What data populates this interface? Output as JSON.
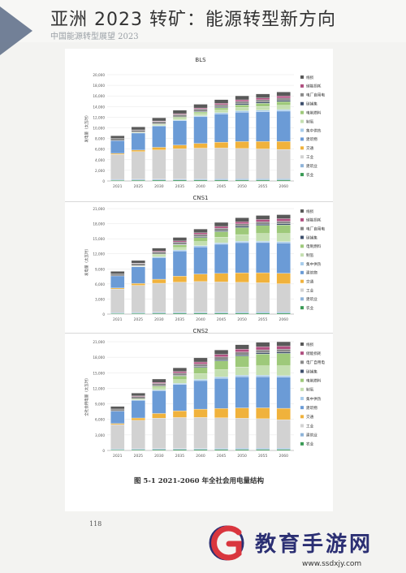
{
  "page": {
    "heading": "亚洲 2023 转矿：能源转型新方向",
    "running_head": "中国能源转型展望 2023",
    "caption": "图 5-1  2021-2060 年全社会用电量结构",
    "page_number": "118"
  },
  "watermark": {
    "name": "教育手游网",
    "url": "www.ssdxjy.com",
    "logo_letter": "G",
    "logo_color": "#d9363e",
    "text_color": "#2b2f73"
  },
  "colors": {
    "农业": "#3a9a55",
    "建筑业": "#8fb4d9",
    "工业": "#d2d2d2",
    "交通": "#f0b23c",
    "建筑物": "#6b9bd6",
    "集中供热": "#a9cdeb",
    "制氢": "#c4dfb0",
    "电制燃料": "#9ec97a",
    "碳捕集": "#3d4f6c",
    "电厂自用电": "#8a8a8a",
    "储能损耗": "#b05080",
    "线损": "#595959"
  },
  "chart_data": [
    {
      "type": "bar",
      "stacked": true,
      "title": "BLS",
      "ylabel": "发电量（太瓦时）",
      "ylim": [
        0,
        20000
      ],
      "yticks": [
        "0",
        "2,000",
        "4,000",
        "6,000",
        "8,000",
        "10,000",
        "12,000",
        "14,000",
        "16,000",
        "18,000",
        "20,000"
      ],
      "categories": [
        "2021",
        "2025",
        "2030",
        "2035",
        "2040",
        "2045",
        "2050",
        "2055",
        "2060"
      ],
      "legend": [
        "线损",
        "储能损耗",
        "电厂自用电",
        "碳捕集",
        "电制燃料",
        "制氢",
        "集中供热",
        "建筑物",
        "交通",
        "工业",
        "建筑业",
        "农业"
      ],
      "series": [
        {
          "name": "农业",
          "values": [
            150,
            160,
            170,
            180,
            190,
            200,
            210,
            215,
            220
          ]
        },
        {
          "name": "建筑业",
          "values": [
            150,
            160,
            170,
            180,
            190,
            200,
            210,
            215,
            220
          ]
        },
        {
          "name": "工业",
          "values": [
            4700,
            5200,
            5500,
            5700,
            5800,
            5800,
            5700,
            5600,
            5500
          ]
        },
        {
          "name": "交通",
          "values": [
            200,
            300,
            500,
            700,
            900,
            1100,
            1300,
            1400,
            1500
          ]
        },
        {
          "name": "建筑物",
          "values": [
            2400,
            3200,
            4000,
            4600,
            5000,
            5300,
            5500,
            5600,
            5700
          ]
        },
        {
          "name": "集中供热",
          "values": [
            0,
            50,
            100,
            150,
            200,
            250,
            300,
            300,
            300
          ]
        },
        {
          "name": "制氢",
          "values": [
            0,
            100,
            200,
            300,
            400,
            500,
            600,
            700,
            800
          ]
        },
        {
          "name": "电制燃料",
          "values": [
            0,
            0,
            100,
            200,
            300,
            400,
            500,
            600,
            700
          ]
        },
        {
          "name": "碳捕集",
          "values": [
            0,
            0,
            0,
            50,
            100,
            150,
            200,
            200,
            200
          ]
        },
        {
          "name": "电厂自用电",
          "values": [
            400,
            400,
            450,
            450,
            450,
            450,
            450,
            450,
            450
          ]
        },
        {
          "name": "储能损耗",
          "values": [
            0,
            50,
            100,
            150,
            200,
            250,
            300,
            350,
            400
          ]
        },
        {
          "name": "线损",
          "values": [
            500,
            550,
            600,
            650,
            700,
            700,
            750,
            750,
            750
          ]
        }
      ]
    },
    {
      "type": "bar",
      "stacked": true,
      "title": "CNS1",
      "ylabel": "发电量（太瓦时）",
      "ylim": [
        0,
        21000
      ],
      "yticks": [
        "0",
        "3,000",
        "6,000",
        "9,000",
        "12,000",
        "15,000",
        "18,000",
        "21,000"
      ],
      "categories": [
        "2021",
        "2025",
        "2030",
        "2035",
        "2040",
        "2045",
        "2050",
        "2055",
        "2060"
      ],
      "legend": [
        "线损",
        "储能损耗",
        "电厂自用电",
        "碳捕集",
        "电制燃料",
        "制氢",
        "集中供热",
        "建筑物",
        "交通",
        "工业",
        "建筑业",
        "农业"
      ],
      "series": [
        {
          "name": "农业",
          "values": [
            150,
            160,
            170,
            180,
            190,
            200,
            210,
            215,
            220
          ]
        },
        {
          "name": "建筑业",
          "values": [
            150,
            160,
            170,
            180,
            190,
            200,
            210,
            215,
            220
          ]
        },
        {
          "name": "工业",
          "values": [
            4700,
            5400,
            5800,
            6000,
            6100,
            6000,
            5900,
            5800,
            5600
          ]
        },
        {
          "name": "交通",
          "values": [
            200,
            400,
            800,
            1200,
            1500,
            1700,
            1900,
            2000,
            2100
          ]
        },
        {
          "name": "建筑物",
          "values": [
            2400,
            3300,
            4300,
            5000,
            5400,
            5800,
            6000,
            6000,
            6000
          ]
        },
        {
          "name": "集中供热",
          "values": [
            0,
            50,
            150,
            200,
            250,
            300,
            300,
            300,
            300
          ]
        },
        {
          "name": "制氢",
          "values": [
            0,
            100,
            300,
            500,
            800,
            1100,
            1300,
            1500,
            1600
          ]
        },
        {
          "name": "电制燃料",
          "values": [
            0,
            50,
            200,
            500,
            800,
            1100,
            1400,
            1600,
            1700
          ]
        },
        {
          "name": "碳捕集",
          "values": [
            0,
            0,
            50,
            100,
            150,
            200,
            250,
            250,
            250
          ]
        },
        {
          "name": "电厂自用电",
          "values": [
            400,
            450,
            450,
            500,
            500,
            500,
            500,
            500,
            500
          ]
        },
        {
          "name": "储能损耗",
          "values": [
            0,
            50,
            150,
            200,
            300,
            350,
            400,
            450,
            500
          ]
        },
        {
          "name": "线损",
          "values": [
            500,
            550,
            600,
            700,
            750,
            800,
            800,
            800,
            800
          ]
        }
      ]
    },
    {
      "type": "bar",
      "stacked": true,
      "title": "CNS2",
      "ylabel": "全社会用电量（太瓦时）",
      "ylim": [
        0,
        21000
      ],
      "yticks": [
        "0",
        "3,000",
        "6,000",
        "9,000",
        "12,000",
        "15,000",
        "18,000",
        "21,000"
      ],
      "categories": [
        "2021",
        "2025",
        "2030",
        "2035",
        "2040",
        "2045",
        "2050",
        "2055",
        "2060"
      ],
      "legend": [
        "线损",
        "储能损耗",
        "电厂自用电",
        "碳捕集",
        "电制燃料",
        "制氢",
        "集中供热",
        "建筑物",
        "交通",
        "工业",
        "建筑业",
        "农业"
      ],
      "series": [
        {
          "name": "农业",
          "values": [
            150,
            160,
            170,
            180,
            190,
            200,
            210,
            215,
            220
          ]
        },
        {
          "name": "建筑业",
          "values": [
            150,
            160,
            170,
            180,
            190,
            200,
            210,
            215,
            220
          ]
        },
        {
          "name": "工业",
          "values": [
            4700,
            5500,
            5900,
            6000,
            6000,
            5900,
            5800,
            5700,
            5500
          ]
        },
        {
          "name": "交通",
          "values": [
            200,
            450,
            900,
            1300,
            1600,
            1800,
            2000,
            2100,
            2200
          ]
        },
        {
          "name": "建筑物",
          "values": [
            2400,
            3400,
            4400,
            5100,
            5500,
            5800,
            6000,
            6000,
            6000
          ]
        },
        {
          "name": "集中供热",
          "values": [
            0,
            50,
            150,
            200,
            250,
            300,
            300,
            300,
            300
          ]
        },
        {
          "name": "制氢",
          "values": [
            0,
            150,
            400,
            700,
            1100,
            1400,
            1600,
            1800,
            1900
          ]
        },
        {
          "name": "电制燃料",
          "values": [
            0,
            100,
            300,
            700,
            1200,
            1700,
            2100,
            2300,
            2400
          ]
        },
        {
          "name": "碳捕集",
          "values": [
            0,
            0,
            50,
            100,
            150,
            200,
            250,
            250,
            250
          ]
        },
        {
          "name": "电厂自用电",
          "values": [
            400,
            450,
            500,
            500,
            500,
            550,
            550,
            550,
            550
          ]
        },
        {
          "name": "储能损耗",
          "values": [
            0,
            100,
            200,
            300,
            400,
            500,
            550,
            600,
            600
          ]
        },
        {
          "name": "线损",
          "values": [
            500,
            550,
            650,
            700,
            800,
            850,
            850,
            850,
            850
          ]
        }
      ]
    }
  ]
}
